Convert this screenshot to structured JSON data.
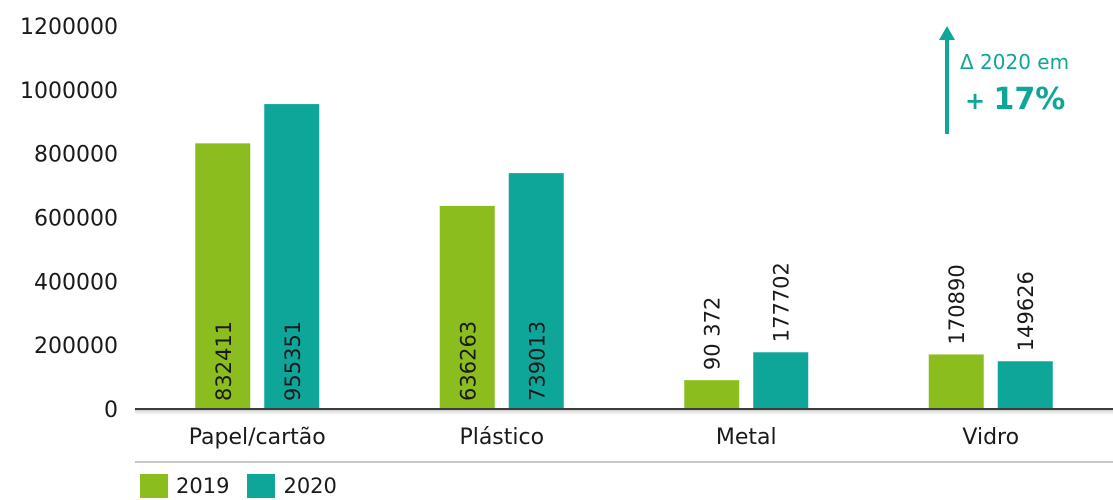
{
  "chart_data": {
    "type": "bar",
    "title": "",
    "xlabel": "",
    "ylabel": "",
    "ylim": [
      0,
      1200000
    ],
    "yticks": [
      0,
      200000,
      400000,
      600000,
      800000,
      1000000,
      1200000
    ],
    "ytick_labels": [
      "0",
      "200000",
      "400000",
      "600000",
      "800000",
      "1000000",
      "1200000"
    ],
    "categories": [
      "Papel/cartão",
      "Plástico",
      "Metal",
      "Vidro"
    ],
    "series": [
      {
        "name": "2019",
        "color": "#8cbd1f",
        "values": [
          832411,
          636263,
          90372,
          170890
        ],
        "labels": [
          "832411",
          "636263",
          "90 372",
          "170890"
        ]
      },
      {
        "name": "2020",
        "color": "#0fa69a",
        "values": [
          955351,
          739013,
          177702,
          149626
        ],
        "labels": [
          "955351",
          "739013",
          "177702",
          "149626"
        ]
      }
    ],
    "grid": false,
    "legend_position": "bottom-left"
  },
  "legend": [
    {
      "label": "2019",
      "color": "#8cbd1f"
    },
    {
      "label": "2020",
      "color": "#0fa69a"
    }
  ],
  "annotation": {
    "line1": "Δ 2020 em",
    "plus": "+ ",
    "value": "17%",
    "color": "#0fa69a",
    "icon": "arrow-up-icon"
  }
}
